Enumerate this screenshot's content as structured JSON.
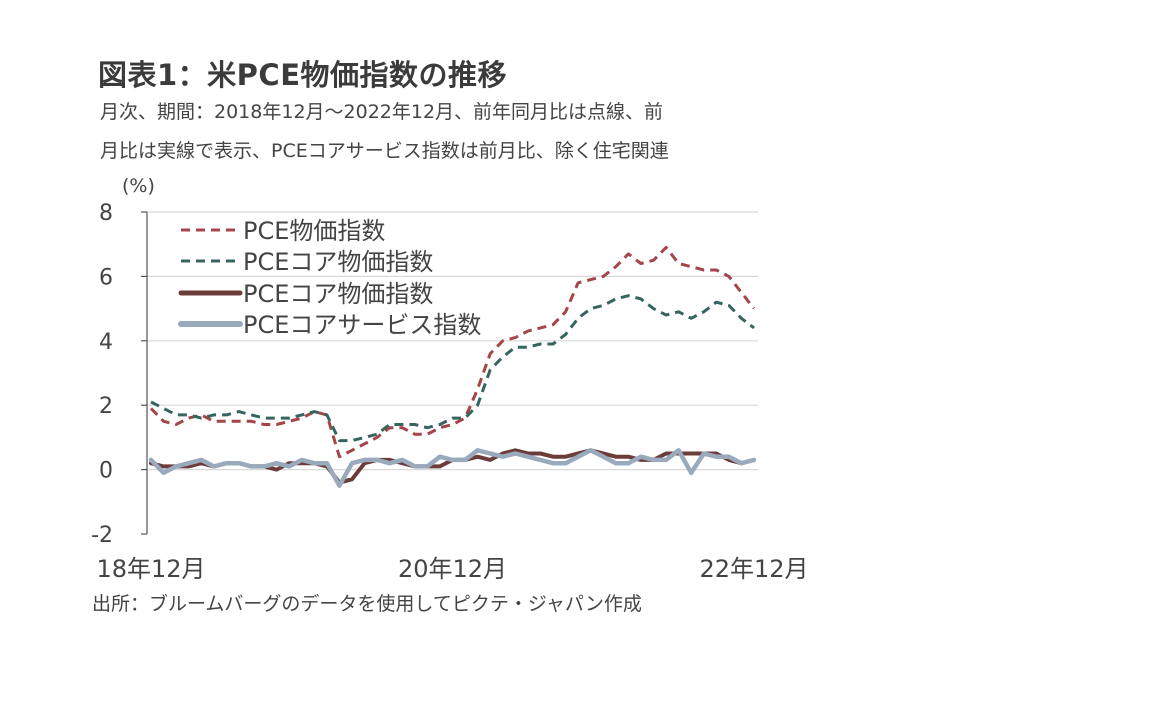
{
  "title": "図表1：米PCE物価指数の推移",
  "subtitle_line1": "月次、期間：2018年12月～2022年12月、前年同月比は点線、前",
  "subtitle_line2": "月比は実線で表示、PCEコアサービス指数は前月比、除く住宅関連",
  "source": "出所：ブルームバーグのデータを使用してピクテ・ジャパン作成",
  "chart_data": {
    "type": "line",
    "ylabel": "(%)",
    "ylim": [
      -2,
      8
    ],
    "yticks": [
      {
        "value": 8,
        "label": "8"
      },
      {
        "value": 6,
        "label": "6"
      },
      {
        "value": 4,
        "label": "4"
      },
      {
        "value": 2,
        "label": "2"
      },
      {
        "value": 0,
        "label": "0"
      },
      {
        "value": -2,
        "label": "-2"
      }
    ],
    "x_categories_count": 49,
    "xticks": [
      {
        "index": 0,
        "label": "18年12月"
      },
      {
        "index": 24,
        "label": "20年12月"
      },
      {
        "index": 48,
        "label": "22年12月"
      }
    ],
    "grid": true,
    "legend_position": "top-left",
    "series": [
      {
        "name": "PCE物価指数",
        "style": "dashed",
        "color": "#a5454a",
        "values": [
          1.9,
          1.5,
          1.4,
          1.6,
          1.7,
          1.5,
          1.5,
          1.5,
          1.5,
          1.4,
          1.4,
          1.5,
          1.6,
          1.8,
          1.7,
          0.4,
          0.6,
          0.8,
          1.0,
          1.3,
          1.3,
          1.1,
          1.1,
          1.3,
          1.4,
          1.6,
          2.5,
          3.6,
          4.0,
          4.1,
          4.3,
          4.4,
          4.5,
          4.9,
          5.8,
          5.9,
          6.0,
          6.3,
          6.7,
          6.4,
          6.5,
          6.9,
          6.4,
          6.3,
          6.2,
          6.2,
          6.0,
          5.5,
          5.0
        ]
      },
      {
        "name": "PCEコア物価指数",
        "style": "dashed",
        "color": "#35655f",
        "values": [
          2.1,
          1.9,
          1.7,
          1.7,
          1.6,
          1.7,
          1.7,
          1.8,
          1.7,
          1.6,
          1.6,
          1.6,
          1.7,
          1.8,
          1.7,
          0.9,
          0.9,
          1.0,
          1.1,
          1.4,
          1.4,
          1.4,
          1.3,
          1.4,
          1.6,
          1.6,
          2.0,
          3.1,
          3.5,
          3.8,
          3.8,
          3.9,
          3.9,
          4.2,
          4.7,
          5.0,
          5.1,
          5.3,
          5.4,
          5.3,
          5.0,
          4.8,
          4.9,
          4.7,
          4.9,
          5.2,
          5.1,
          4.7,
          4.4
        ]
      },
      {
        "name": "PCEコア物価指数",
        "style": "solid",
        "color": "#6b3c3a",
        "values": [
          0.2,
          0.1,
          0.1,
          0.1,
          0.2,
          0.1,
          0.2,
          0.2,
          0.1,
          0.1,
          0.0,
          0.2,
          0.2,
          0.2,
          0.1,
          -0.4,
          -0.3,
          0.2,
          0.3,
          0.3,
          0.2,
          0.1,
          0.1,
          0.1,
          0.3,
          0.3,
          0.4,
          0.3,
          0.5,
          0.6,
          0.5,
          0.5,
          0.4,
          0.4,
          0.5,
          0.6,
          0.5,
          0.4,
          0.4,
          0.3,
          0.3,
          0.5,
          0.5,
          0.5,
          0.5,
          0.5,
          0.3,
          0.2,
          0.3
        ]
      },
      {
        "name": "PCEコアサービス指数",
        "style": "solid",
        "color": "#9aaabd",
        "values": [
          0.3,
          -0.1,
          0.1,
          0.2,
          0.3,
          0.1,
          0.2,
          0.2,
          0.1,
          0.1,
          0.2,
          0.1,
          0.3,
          0.2,
          0.2,
          -0.5,
          0.2,
          0.3,
          0.3,
          0.2,
          0.3,
          0.1,
          0.1,
          0.4,
          0.3,
          0.3,
          0.6,
          0.5,
          0.4,
          0.5,
          0.4,
          0.3,
          0.2,
          0.2,
          0.4,
          0.6,
          0.4,
          0.2,
          0.2,
          0.4,
          0.3,
          0.3,
          0.6,
          -0.1,
          0.5,
          0.4,
          0.4,
          0.2,
          0.3
        ]
      }
    ]
  }
}
